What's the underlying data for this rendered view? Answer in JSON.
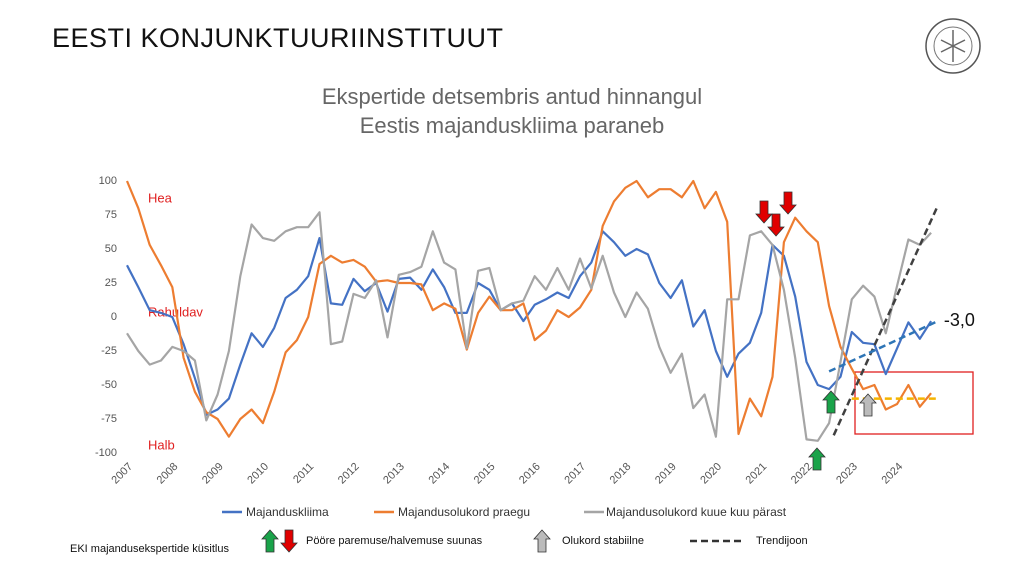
{
  "header": "EESTI KONJUNKTUURIINSTITUUT",
  "chart_data": {
    "type": "line",
    "title": "Ekspertide detsembris antud hinnangul",
    "subtitle": "Eestis majanduskliima paraneb",
    "zone_labels": [
      "Hea",
      "Rahuldav",
      "Halb"
    ],
    "annotation": "-3,0",
    "x": [
      2007,
      2007.25,
      2007.5,
      2007.75,
      2008,
      2008.25,
      2008.5,
      2008.75,
      2009,
      2009.25,
      2009.5,
      2009.75,
      2010,
      2010.25,
      2010.5,
      2010.75,
      2011,
      2011.25,
      2011.5,
      2011.75,
      2012,
      2012.25,
      2012.5,
      2012.75,
      2013,
      2013.25,
      2013.5,
      2013.75,
      2014,
      2014.25,
      2014.5,
      2014.75,
      2015,
      2015.25,
      2015.5,
      2015.75,
      2016,
      2016.25,
      2016.5,
      2016.75,
      2017,
      2017.25,
      2017.5,
      2017.75,
      2018,
      2018.25,
      2018.5,
      2018.75,
      2019,
      2019.25,
      2019.5,
      2019.75,
      2020,
      2020.25,
      2020.5,
      2020.75,
      2021,
      2021.25,
      2021.5,
      2021.75,
      2022,
      2022.25,
      2022.5,
      2022.75,
      2023,
      2023.25,
      2023.5,
      2023.75,
      2024,
      2024.25,
      2024.5,
      2024.75
    ],
    "series": [
      {
        "name": "Majanduskliima",
        "color": "#4472c4",
        "values": [
          38,
          22,
          5,
          3,
          0,
          -20,
          -45,
          -72,
          -68,
          -60,
          -35,
          -12,
          -22,
          -8,
          14,
          20,
          30,
          58,
          10,
          9,
          28,
          19,
          25,
          4,
          28,
          29,
          20,
          35,
          22,
          3,
          3,
          25,
          20,
          5,
          10,
          -3,
          9,
          13,
          18,
          14,
          30,
          40,
          63,
          55,
          45,
          50,
          46,
          25,
          14,
          27,
          -7,
          5,
          -25,
          -44,
          -27,
          -19,
          3,
          53,
          45,
          15,
          -33,
          -50,
          -53,
          -44,
          -11,
          -19,
          -20,
          -42,
          -23,
          -4,
          -16,
          -3
        ]
      },
      {
        "name": "Majandusolukord praegu",
        "color": "#ed7d31",
        "values": [
          100,
          80,
          53,
          38,
          22,
          -30,
          -55,
          -70,
          -75,
          -88,
          -75,
          -68,
          -78,
          -55,
          -26,
          -17,
          0,
          39,
          45,
          40,
          42,
          37,
          26,
          27,
          25,
          25,
          24,
          5,
          10,
          6,
          -24,
          3,
          15,
          5,
          5,
          10,
          -17,
          -10,
          5,
          0,
          7,
          20,
          67,
          85,
          95,
          100,
          88,
          94,
          94,
          88,
          100,
          80,
          92,
          70,
          -86,
          -60,
          -73,
          -44,
          55,
          73,
          63,
          55,
          8,
          -22,
          -38,
          -53,
          -50,
          -68,
          -64,
          -50,
          -66,
          -56
        ]
      },
      {
        "name": "Majandusolukord kuue kuu pärast",
        "color": "#a5a5a5",
        "values": [
          -12,
          -25,
          -35,
          -32,
          -22,
          -25,
          -32,
          -76,
          -57,
          -25,
          30,
          68,
          58,
          56,
          63,
          66,
          66,
          77,
          -20,
          -18,
          17,
          14,
          27,
          -15,
          31,
          33,
          37,
          63,
          40,
          35,
          -23,
          34,
          36,
          5,
          10,
          12,
          30,
          20,
          36,
          20,
          43,
          21,
          45,
          18,
          0,
          18,
          6,
          -22,
          -41,
          -27,
          -67,
          -57,
          -88,
          13,
          13,
          60,
          63,
          53,
          20,
          -30,
          -90,
          -91,
          -78,
          -33,
          13,
          23,
          15,
          -12,
          23,
          57,
          53,
          62
        ]
      }
    ],
    "trend_label": "Trendijoon",
    "trend_lines": [
      {
        "color": "#404040",
        "x": [
          2022.6,
          2024.9
        ],
        "values": [
          -87,
          82
        ]
      },
      {
        "color": "#2e75b6",
        "x": [
          2022.5,
          2024.9
        ],
        "values": [
          -40,
          -3
        ]
      },
      {
        "color": "#f5b400",
        "x": [
          2023,
          2024.9
        ],
        "values": [
          -60,
          -60
        ]
      }
    ],
    "xlim": [
      2007,
      2025
    ],
    "xticks": [
      2007,
      2008,
      2009,
      2010,
      2011,
      2012,
      2013,
      2014,
      2015,
      2016,
      2017,
      2018,
      2019,
      2020,
      2021,
      2022,
      2023,
      2024
    ],
    "ylim": [
      -100,
      100
    ],
    "yticks": [
      100,
      75,
      50,
      25,
      0,
      -25,
      -50,
      -75,
      -100
    ]
  },
  "footer": {
    "source": "EKI majandusekspertide küsitlus",
    "turn_label": "Pööre paremuse/halvemuse suunas",
    "stable_label": "Olukord stabiilne"
  }
}
